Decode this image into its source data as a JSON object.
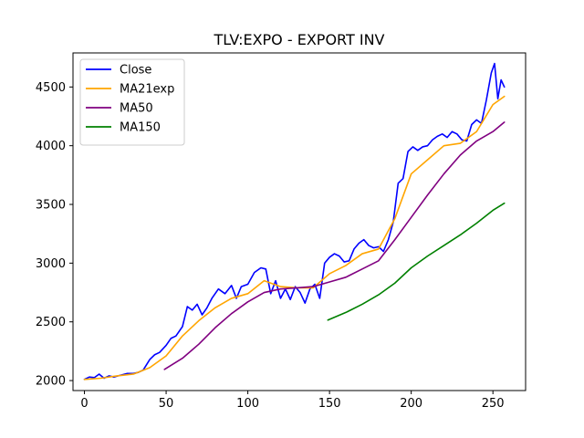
{
  "chart_data": {
    "type": "line",
    "title": "TLV:EXPO - EXPORT INV",
    "xlabel": "",
    "ylabel": "",
    "xlim": [
      -7,
      270
    ],
    "ylim": [
      1915,
      4790
    ],
    "x_ticks": [
      0,
      50,
      100,
      150,
      200,
      250
    ],
    "y_ticks": [
      2000,
      2500,
      3000,
      3500,
      4000,
      4500
    ],
    "grid": false,
    "legend": "upper-left",
    "series": [
      {
        "name": "Close",
        "color": "#0000ff",
        "x": [
          0,
          3,
          6,
          9,
          12,
          15,
          18,
          22,
          26,
          30,
          33,
          36,
          40,
          43,
          46,
          50,
          53,
          56,
          60,
          63,
          66,
          69,
          72,
          75,
          78,
          82,
          86,
          90,
          93,
          96,
          100,
          104,
          108,
          111,
          114,
          117,
          120,
          123,
          126,
          129,
          132,
          135,
          138,
          141,
          144,
          147,
          150,
          153,
          156,
          159,
          162,
          165,
          168,
          171,
          174,
          177,
          180,
          183,
          186,
          189,
          192,
          195,
          198,
          201,
          204,
          207,
          210,
          213,
          216,
          219,
          222,
          225,
          228,
          231,
          234,
          237,
          240,
          243,
          246,
          249,
          251,
          253,
          255,
          257
        ],
        "values": [
          2010,
          2030,
          2025,
          2055,
          2020,
          2040,
          2030,
          2045,
          2060,
          2060,
          2070,
          2090,
          2180,
          2220,
          2240,
          2300,
          2360,
          2380,
          2460,
          2630,
          2600,
          2650,
          2560,
          2620,
          2700,
          2780,
          2740,
          2810,
          2700,
          2800,
          2820,
          2920,
          2960,
          2950,
          2740,
          2850,
          2700,
          2780,
          2690,
          2800,
          2750,
          2660,
          2780,
          2820,
          2700,
          3000,
          3050,
          3080,
          3060,
          3010,
          3020,
          3120,
          3170,
          3200,
          3150,
          3130,
          3140,
          3100,
          3200,
          3350,
          3680,
          3720,
          3950,
          3990,
          3960,
          3990,
          4000,
          4050,
          4080,
          4100,
          4070,
          4120,
          4100,
          4050,
          4040,
          4180,
          4220,
          4190,
          4390,
          4620,
          4700,
          4400,
          4560,
          4500
        ]
      },
      {
        "name": "MA21exp",
        "color": "#ffa500",
        "x": [
          0,
          10,
          20,
          30,
          40,
          50,
          60,
          70,
          80,
          90,
          100,
          110,
          120,
          130,
          140,
          150,
          160,
          170,
          180,
          190,
          200,
          210,
          220,
          230,
          240,
          250,
          257
        ],
        "values": [
          2010,
          2020,
          2040,
          2055,
          2110,
          2210,
          2380,
          2510,
          2620,
          2700,
          2740,
          2850,
          2800,
          2790,
          2790,
          2910,
          2980,
          3080,
          3120,
          3380,
          3760,
          3880,
          4000,
          4020,
          4120,
          4350,
          4420
        ]
      },
      {
        "name": "MA50",
        "color": "#800080",
        "x": [
          49,
          60,
          70,
          80,
          90,
          100,
          110,
          120,
          130,
          140,
          150,
          160,
          170,
          180,
          190,
          200,
          210,
          220,
          230,
          240,
          250,
          257
        ],
        "values": [
          2095,
          2190,
          2310,
          2450,
          2570,
          2670,
          2750,
          2780,
          2790,
          2800,
          2840,
          2880,
          2950,
          3020,
          3200,
          3390,
          3580,
          3760,
          3920,
          4040,
          4120,
          4200
        ]
      },
      {
        "name": "MA150",
        "color": "#008000",
        "x": [
          149,
          160,
          170,
          180,
          190,
          200,
          210,
          220,
          230,
          240,
          250,
          257
        ],
        "values": [
          2515,
          2580,
          2650,
          2730,
          2830,
          2960,
          3060,
          3150,
          3240,
          3340,
          3450,
          3510
        ]
      }
    ]
  }
}
